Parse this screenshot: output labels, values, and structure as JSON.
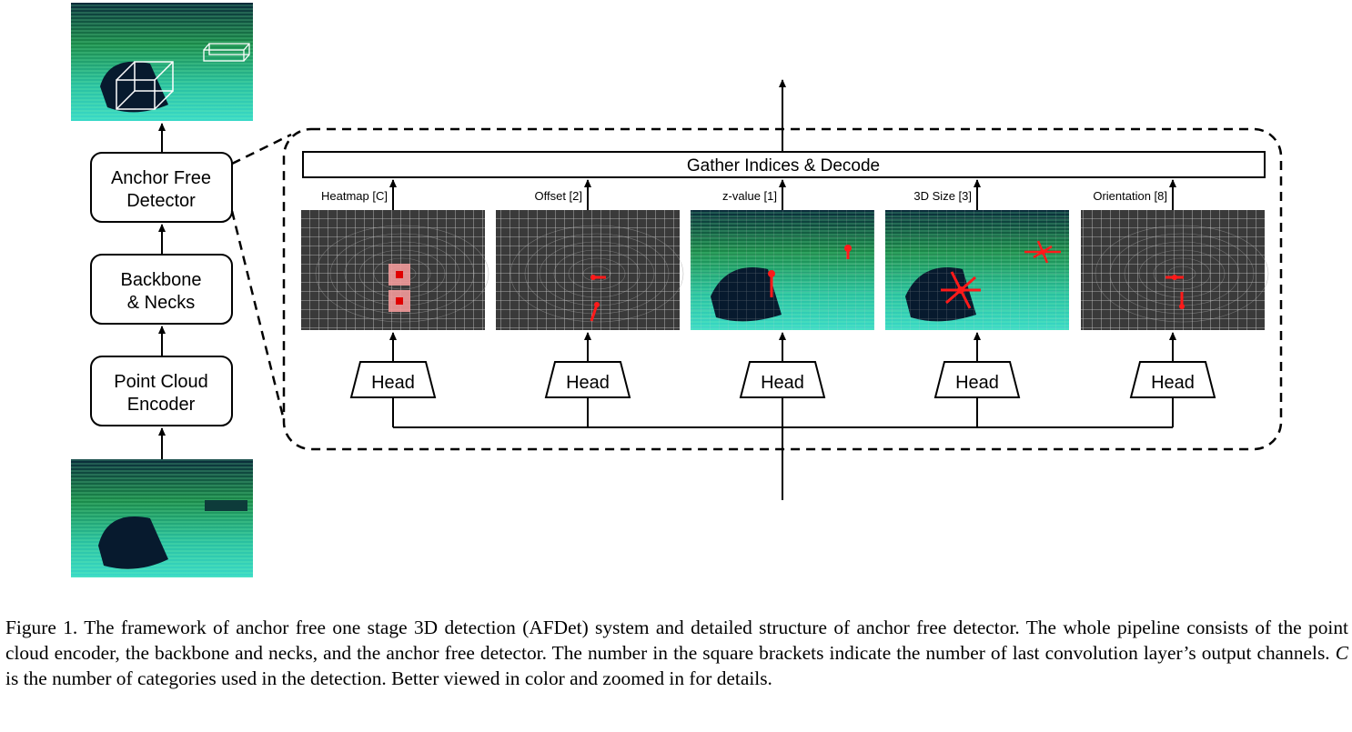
{
  "pipeline": {
    "detector_label": [
      "Anchor Free",
      "Detector"
    ],
    "backbone_label": [
      "Backbone",
      "& Necks"
    ],
    "encoder_label": [
      "Point Cloud",
      "Encoder"
    ]
  },
  "detector": {
    "gather_label": "Gather Indices & Decode",
    "head_label": "Head",
    "outputs": [
      {
        "label": "Heatmap [C]",
        "style": "grid",
        "marks": "heatmap"
      },
      {
        "label": "Offset [2]",
        "style": "grid",
        "marks": "offset"
      },
      {
        "label": "z-value [1]",
        "style": "lidar",
        "marks": "zvalue"
      },
      {
        "label": "3D Size [3]",
        "style": "lidar",
        "marks": "size"
      },
      {
        "label": "Orientation [8]",
        "style": "grid",
        "marks": "orientation"
      }
    ]
  },
  "caption": {
    "part1": "Figure 1. The framework of anchor free one stage 3D detection (AFDet) system and detailed structure of anchor free detector. The whole pipeline consists of the point cloud encoder, the backbone and necks, and the anchor free detector. The number in the square brackets indicate the number of last convolution layer’s output channels. ",
    "math": "C",
    "part2": " is the number of categories used in the detection. Better viewed in color and zoomed in for details."
  },
  "colors": {
    "lidar_dark": "#071a2e",
    "lidar_green": "#2fd35a",
    "lidar_cyan": "#36d9c7",
    "grid_bg": "#3a3a3a",
    "grid_line": "#cfcfcf",
    "marker_red": "#ff1a1a"
  }
}
